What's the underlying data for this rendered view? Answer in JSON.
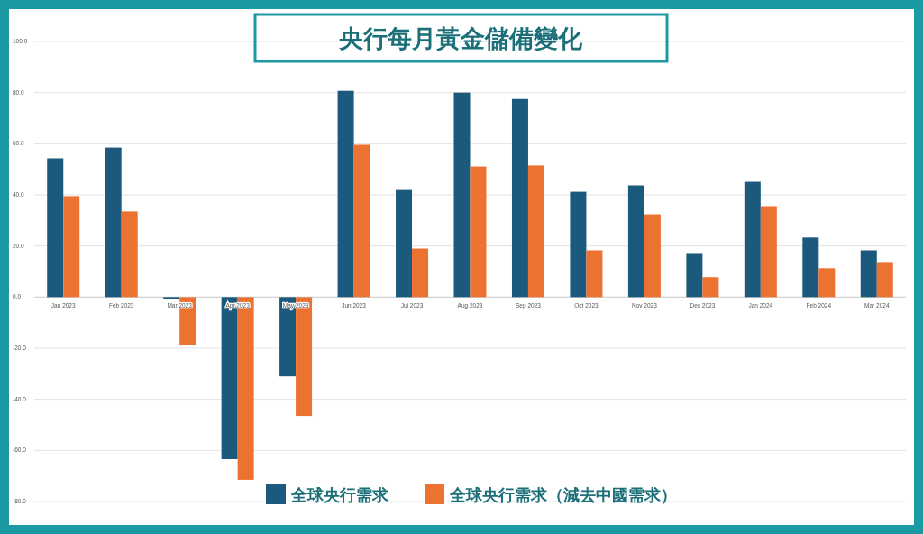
{
  "chart_data": {
    "type": "bar",
    "title": "央行每月黃金儲備變化",
    "categories": [
      "Jan 2023",
      "Feb 2023",
      "Mar 2023",
      "Apr 2023",
      "May 2023",
      "Jun 2023",
      "Jul 2023",
      "Aug 2023",
      "Sep 2023",
      "Oct 2023",
      "Nov 2023",
      "Dec 2023",
      "Jan 2024",
      "Feb 2024",
      "Mar 2024"
    ],
    "series": [
      {
        "name": "全球央行需求",
        "color": "#1b5a7c",
        "values": [
          54.3,
          58.5,
          -0.7,
          -63.4,
          -31,
          80.7,
          41.9,
          80,
          77.5,
          41.2,
          43.7,
          16.9,
          45.1,
          23.3,
          18.3
        ]
      },
      {
        "name": "全球央行需求（減去中國需求）",
        "color": "#ec7232",
        "values": [
          39.5,
          33.5,
          -18.7,
          -71.5,
          -46.5,
          59.6,
          19,
          51.1,
          51.5,
          18.3,
          32.4,
          7.8,
          35.6,
          11.3,
          13.4
        ]
      }
    ],
    "ylim": [
      -80,
      100
    ],
    "yticks": [
      {
        "value": -80,
        "label": "-80.0"
      },
      {
        "value": -60,
        "label": "-60.0"
      },
      {
        "value": -40,
        "label": "-40.0"
      },
      {
        "value": -20,
        "label": "-20.0"
      },
      {
        "value": 0,
        "label": "0.0"
      },
      {
        "value": 20,
        "label": "20.0"
      },
      {
        "value": 40,
        "label": "40.0"
      },
      {
        "value": 60,
        "label": "60.0"
      },
      {
        "value": 80,
        "label": "80.0"
      },
      {
        "value": 100,
        "label": "100.0"
      }
    ],
    "grid": "y",
    "legend": "bottom"
  }
}
